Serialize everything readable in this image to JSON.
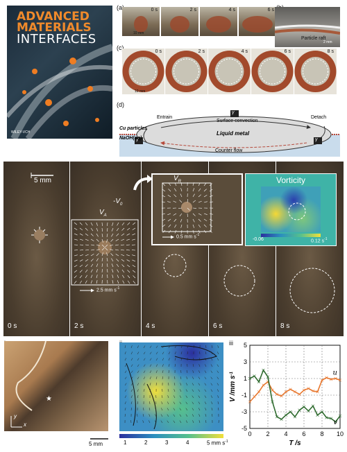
{
  "cover": {
    "title_line1": "ADVANCED",
    "title_line2": "MATERIALS",
    "title_line3": "INTERFACES",
    "publisher": "WILEY-VCH"
  },
  "panel_a": {
    "label": "(a)",
    "times": [
      "0 s",
      "2 s",
      "4 s",
      "6 s"
    ],
    "scale": "10 mm"
  },
  "panel_b": {
    "label": "(b)",
    "caption": "Particle raft",
    "scale": "2 mm"
  },
  "panel_c": {
    "label": "(c)",
    "times": [
      "0 s",
      "2 s",
      "4 s",
      "6 s",
      "8 s"
    ],
    "scale": "10 mm"
  },
  "panel_d": {
    "label": "(d)",
    "cu": "Cu particles",
    "naoh": "NaOH(aq)",
    "lm": "Liquid metal",
    "entrain": "Entrain",
    "detach": "Detach",
    "surface": "Surface convection",
    "counter": "Counter flow",
    "gamma_top": "γ",
    "gamma_left": "γ",
    "gamma_right": "γ"
  },
  "middle": {
    "scale": "5 mm",
    "v0": "-V",
    "v0_sub": "0",
    "va": "V",
    "va_sub": "A",
    "vr": "V",
    "vr_sub": "R",
    "arrow_a": "2.5 mm s",
    "arrow_r": "0.5 mm s",
    "times": [
      "0 s",
      "2 s",
      "4 s",
      "6 s",
      "8 s"
    ],
    "vorticity": {
      "title": "Vorticity",
      "min": "-0.06",
      "max": "0.12 s",
      "max_sup": "-1"
    }
  },
  "bottom": {
    "i_label": "i",
    "ii_label": "ii",
    "iii_label": "iii",
    "scale": "5 mm",
    "axis_y": "y",
    "axis_x": "x",
    "colorbar_ticks": [
      "1",
      "2",
      "3",
      "4",
      "5 mm s"
    ],
    "colorbar_sup": "-1"
  },
  "chart_data": {
    "type": "line",
    "xlabel": "T /s",
    "ylabel": "V /mm s",
    "ylabel_sup": "-1",
    "xlim": [
      0,
      10
    ],
    "ylim": [
      -5,
      5
    ],
    "xticks": [
      "0",
      "2",
      "4",
      "6",
      "8",
      "10"
    ],
    "yticks": [
      "5",
      "3",
      "1",
      "-1",
      "-3",
      "-5"
    ],
    "grid": true,
    "series": [
      {
        "name": "u",
        "color": "#e8772e",
        "x": [
          0,
          0.5,
          1,
          1.5,
          2,
          2.5,
          3,
          3.5,
          4,
          4.5,
          5,
          5.5,
          6,
          6.5,
          7,
          7.5,
          8,
          8.5,
          9,
          9.5,
          10
        ],
        "y": [
          -1.8,
          -1.2,
          -0.6,
          0.2,
          0.6,
          -0.4,
          -0.9,
          -1.1,
          -0.6,
          -0.3,
          -0.6,
          -0.9,
          -0.4,
          -0.2,
          -0.5,
          -0.6,
          0.8,
          1.1,
          0.9,
          1.0,
          0.8
        ]
      },
      {
        "name": "v",
        "color": "#2f6b2f",
        "x": [
          0,
          0.5,
          1,
          1.5,
          2,
          2.5,
          3,
          3.5,
          4,
          4.5,
          5,
          5.5,
          6,
          6.5,
          7,
          7.5,
          8,
          8.5,
          9,
          9.5,
          10
        ],
        "y": [
          1.0,
          1.3,
          0.6,
          2.0,
          1.2,
          -1.8,
          -3.6,
          -3.9,
          -3.4,
          -3.0,
          -3.6,
          -2.8,
          -2.4,
          -2.9,
          -2.3,
          -3.4,
          -3.0,
          -3.7,
          -3.8,
          -4.2,
          -3.5
        ]
      }
    ]
  }
}
